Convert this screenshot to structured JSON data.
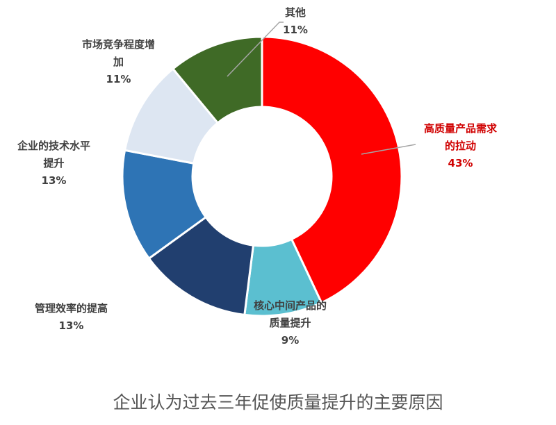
{
  "chart_data": {
    "type": "pie",
    "subtype": "donut",
    "title": "企业认为过去三年促使质量提升的主要原因",
    "start_angle": "12 o'clock",
    "direction": "clockwise",
    "slices": [
      {
        "label_lines": [
          "高质量产品需求",
          "的拉动"
        ],
        "value": 43,
        "value_label": "43%",
        "color": "#ff0000"
      },
      {
        "label_lines": [
          "核心中间产品的",
          "质量提升"
        ],
        "value": 9,
        "value_label": "9%",
        "color": "#5bbfd0"
      },
      {
        "label_lines": [
          "管理效率的提高"
        ],
        "value": 13,
        "value_label": "13%",
        "color": "#213f6f"
      },
      {
        "label_lines": [
          "企业的技术水平",
          "提升"
        ],
        "value": 13,
        "value_label": "13%",
        "color": "#2e74b5"
      },
      {
        "label_lines": [
          "市场竞争程度增",
          "加"
        ],
        "value": 11,
        "value_label": "11%",
        "color": "#dde6f2"
      },
      {
        "label_lines": [
          "其他"
        ],
        "value": 11,
        "value_label": "11%",
        "color": "#3f6a26"
      }
    ]
  }
}
